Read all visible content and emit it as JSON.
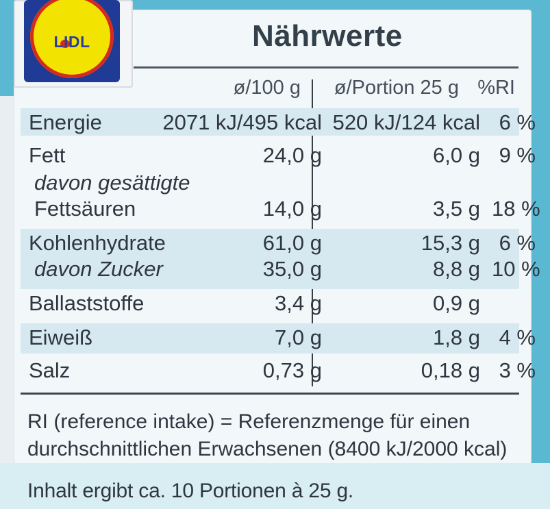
{
  "brand": {
    "logo_text": "LIDL",
    "colors": {
      "logo_blue": "#1f3b96",
      "logo_yellow": "#f2e400",
      "logo_red": "#d72a1f"
    }
  },
  "nutrition": {
    "title": "Nährwerte",
    "headers": {
      "per100": "ø/100 g",
      "perportion": "ø/Portion 25 g",
      "ri": "%RI"
    },
    "rows": [
      {
        "label": "Energie",
        "per100": "2071 kJ/495 kcal",
        "perportion": "520 kJ/124 kcal",
        "ri": "6 %"
      },
      {
        "label": "Fett",
        "per100": "24,0 g",
        "perportion": "6,0 g",
        "ri": "9 %"
      },
      {
        "label": "davon gesättigte",
        "per100": "",
        "perportion": "",
        "ri": ""
      },
      {
        "label": "Fettsäuren",
        "per100": "14,0 g",
        "perportion": "3,5 g",
        "ri": "18 %"
      },
      {
        "label": "Kohlenhydrate",
        "per100": "61,0 g",
        "perportion": "15,3 g",
        "ri": "6 %"
      },
      {
        "label": "davon Zucker",
        "per100": "35,0 g",
        "perportion": "8,8 g",
        "ri": "10 %"
      },
      {
        "label": "Ballaststoffe",
        "per100": "3,4 g",
        "perportion": "0,9 g",
        "ri": ""
      },
      {
        "label": "Eiweiß",
        "per100": "7,0 g",
        "perportion": "1,8 g",
        "ri": "4 %"
      },
      {
        "label": "Salz",
        "per100": "0,73 g",
        "perportion": "0,18 g",
        "ri": "3 %"
      }
    ],
    "ri_note_line1": "RI (reference intake) = Referenzmenge für einen",
    "ri_note_line2": "durchschnittlichen Erwachsenen (8400 kJ/2000 kcal)",
    "footer": "Inhalt ergibt ca. 10 Portionen à 25 g."
  }
}
